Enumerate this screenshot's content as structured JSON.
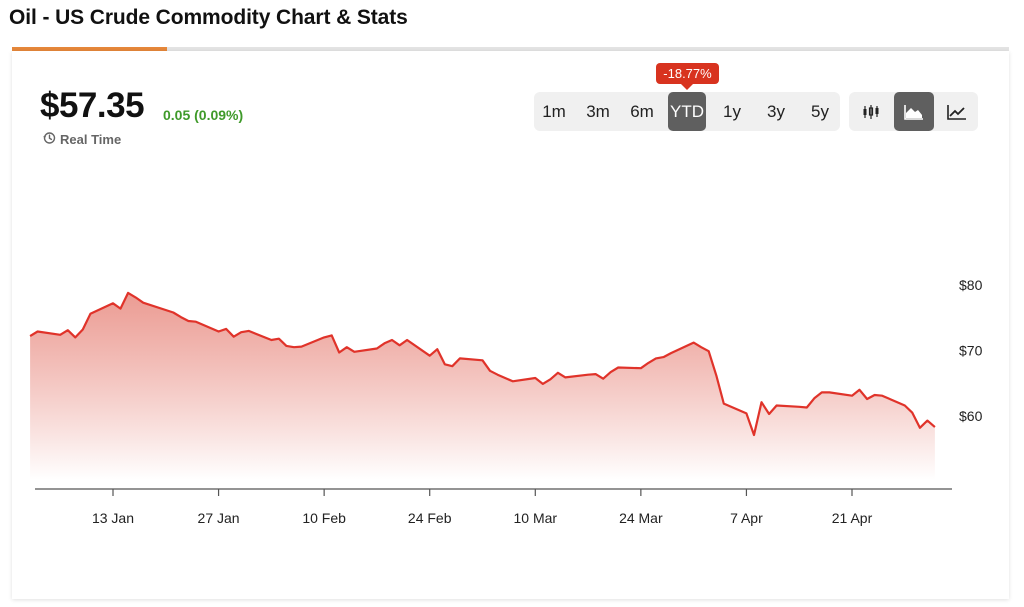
{
  "page": {
    "title": "Oil - US Crude Commodity Chart & Stats"
  },
  "quote": {
    "price": "$57.35",
    "change": "0.05 (0.09%)",
    "realtime_label": "Real Time"
  },
  "range": {
    "badge": "-18.77%",
    "buttons": [
      "1m",
      "3m",
      "6m",
      "YTD",
      "1y",
      "3y",
      "5y"
    ],
    "active": "YTD"
  },
  "chart_types": {
    "items": [
      "candlestick-chart-icon",
      "area-chart-icon",
      "line-chart-icon"
    ],
    "active": "area-chart-icon"
  },
  "colors": {
    "line": "#e0332a",
    "fill_top": "#e88a80",
    "accent": "#e5873a",
    "change": "#3f9a2a",
    "badge": "#d8331f"
  },
  "chart_data": {
    "type": "area",
    "title": "",
    "xlabel": "",
    "ylabel": "",
    "x_ticks": [
      "13 Jan",
      "27 Jan",
      "10 Feb",
      "24 Feb",
      "10 Mar",
      "24 Mar",
      "7 Apr",
      "21 Apr"
    ],
    "y_ticks": [
      "$80",
      "$70",
      "$60"
    ],
    "y_tick_values": [
      80,
      70,
      60
    ],
    "ylim": [
      50,
      90
    ],
    "grid": false,
    "y_axis_position": "right",
    "x": [
      "2025-01-02",
      "2025-01-03",
      "2025-01-06",
      "2025-01-07",
      "2025-01-08",
      "2025-01-09",
      "2025-01-10",
      "2025-01-13",
      "2025-01-14",
      "2025-01-15",
      "2025-01-16",
      "2025-01-17",
      "2025-01-21",
      "2025-01-22",
      "2025-01-23",
      "2025-01-24",
      "2025-01-27",
      "2025-01-28",
      "2025-01-29",
      "2025-01-30",
      "2025-01-31",
      "2025-02-03",
      "2025-02-04",
      "2025-02-05",
      "2025-02-06",
      "2025-02-07",
      "2025-02-10",
      "2025-02-11",
      "2025-02-12",
      "2025-02-13",
      "2025-02-14",
      "2025-02-17",
      "2025-02-18",
      "2025-02-19",
      "2025-02-20",
      "2025-02-21",
      "2025-02-24",
      "2025-02-25",
      "2025-02-26",
      "2025-02-27",
      "2025-02-28",
      "2025-03-03",
      "2025-03-04",
      "2025-03-05",
      "2025-03-06",
      "2025-03-07",
      "2025-03-10",
      "2025-03-11",
      "2025-03-12",
      "2025-03-13",
      "2025-03-14",
      "2025-03-17",
      "2025-03-18",
      "2025-03-19",
      "2025-03-20",
      "2025-03-21",
      "2025-03-24",
      "2025-03-25",
      "2025-03-26",
      "2025-03-27",
      "2025-03-28",
      "2025-03-31",
      "2025-04-01",
      "2025-04-02",
      "2025-04-03",
      "2025-04-04",
      "2025-04-07",
      "2025-04-08",
      "2025-04-09",
      "2025-04-10",
      "2025-04-11",
      "2025-04-14",
      "2025-04-15",
      "2025-04-16",
      "2025-04-17",
      "2025-04-18",
      "2025-04-21",
      "2025-04-22",
      "2025-04-23",
      "2025-04-24",
      "2025-04-25",
      "2025-04-28",
      "2025-04-29",
      "2025-04-30",
      "2025-05-01",
      "2025-05-02"
    ],
    "series": [
      {
        "values": [
          72.2,
          72.9,
          72.4,
          73.1,
          72.0,
          73.2,
          75.6,
          77.2,
          76.4,
          78.8,
          78.1,
          77.3,
          75.8,
          75.1,
          74.5,
          74.4,
          72.9,
          73.3,
          72.1,
          72.8,
          73.0,
          71.6,
          71.8,
          70.7,
          70.5,
          70.6,
          72.0,
          72.3,
          69.7,
          70.5,
          69.8,
          70.3,
          71.1,
          71.6,
          70.8,
          71.6,
          69.2,
          70.2,
          67.9,
          67.6,
          68.8,
          68.5,
          66.9,
          66.3,
          65.8,
          65.3,
          65.8,
          64.9,
          65.6,
          66.6,
          65.9,
          66.3,
          66.4,
          65.7,
          66.7,
          67.4,
          67.3,
          68.1,
          68.8,
          69.0,
          69.6,
          71.2,
          70.5,
          69.9,
          66.2,
          61.9,
          60.4,
          57.1,
          62.1,
          60.3,
          61.6,
          61.4,
          61.3,
          62.7,
          63.6,
          63.6,
          63.1,
          64.0,
          62.6,
          63.2,
          63.1,
          61.6,
          60.5,
          58.2,
          59.3,
          58.3
        ]
      }
    ]
  }
}
